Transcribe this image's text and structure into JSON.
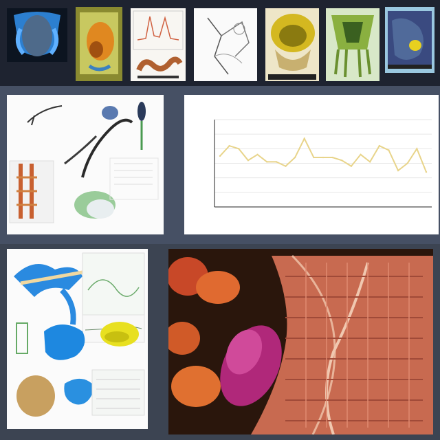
{
  "chart_data": {
    "type": "line",
    "title": "",
    "xlabel": "",
    "ylabel": "",
    "ylim": [
      0,
      6
    ],
    "x": [
      1,
      2,
      3,
      4,
      5,
      6,
      7,
      8,
      9,
      10,
      11,
      12,
      13,
      14,
      15,
      16,
      17,
      18,
      19,
      20,
      21,
      22,
      23
    ],
    "series": [
      {
        "values": [
          3.5,
          4.2,
          4.0,
          3.2,
          3.6,
          3.1,
          3.1,
          2.8,
          3.4,
          4.7,
          3.4,
          3.4,
          3.4,
          3.2,
          2.8,
          3.6,
          3.1,
          4.2,
          3.9,
          2.5,
          3.0,
          4.0,
          2.4
        ],
        "color": "#e8d48a"
      }
    ],
    "grid": true
  }
}
